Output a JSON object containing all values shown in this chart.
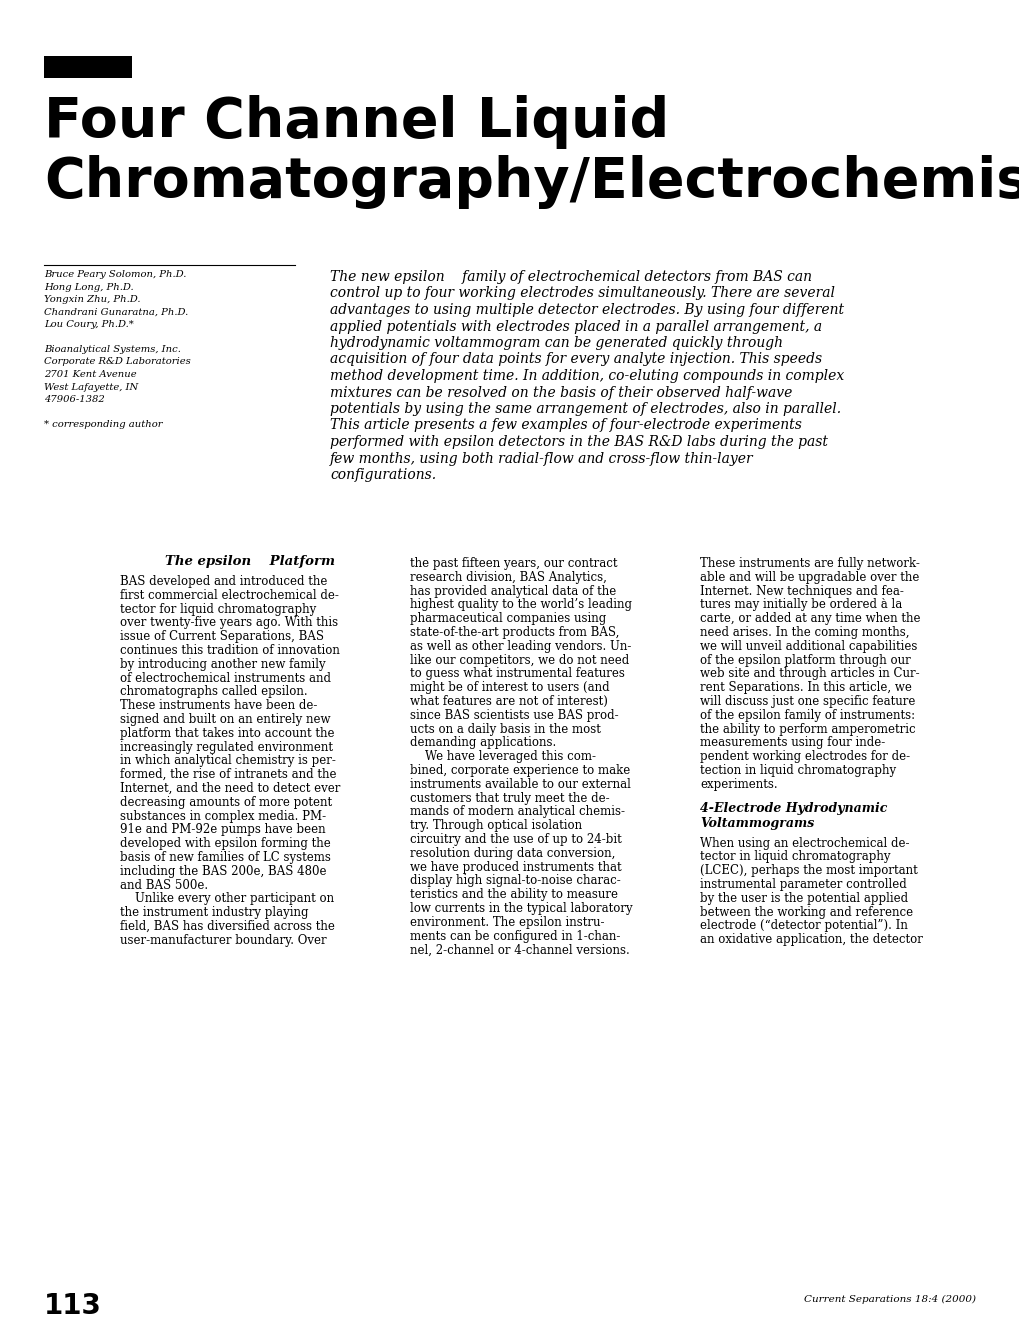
{
  "bg_color": "#ffffff",
  "title_line1": "Four Channel Liquid",
  "title_line2": "Chromatography/Electrochemistry",
  "authors_block": [
    "Bruce Peary Solomon, Ph.D.",
    "Hong Long, Ph.D.",
    "Yongxin Zhu, Ph.D.",
    "Chandrani Gunaratna, Ph.D.",
    "Lou Coury, Ph.D.*",
    "",
    "Bioanalytical Systems, Inc.",
    "Corporate R&D Laboratories",
    "2701 Kent Avenue",
    "West Lafayette, IN",
    "47906-1382",
    "",
    "* corresponding author"
  ],
  "abstract_lines": [
    "The new epsilon    family of electrochemical detectors from BAS can",
    "control up to four working electrodes simultaneously. There are several",
    "advantages to using multiple detector electrodes. By using four different",
    "applied potentials with electrodes placed in a parallel arrangement, a",
    "hydrodynamic voltammogram can be generated quickly through",
    "acquisition of four data points for every analyte injection. This speeds",
    "method development time. In addition, co-eluting compounds in complex",
    "mixtures can be resolved on the basis of their observed half-wave",
    "potentials by using the same arrangement of electrodes, also in parallel.",
    "This article presents a few examples of four-electrode experiments",
    "performed with epsilon detectors in the BAS R&D labs during the past",
    "few months, using both radial-flow and cross-flow thin-layer",
    "configurations."
  ],
  "section_title": "The epsilon    Platform",
  "col1_lines": [
    "BAS developed and introduced the",
    "first commercial electrochemical de-",
    "tector for liquid chromatography",
    "over twenty-five years ago. With this",
    "issue of Current Separations, BAS",
    "continues this tradition of innovation",
    "by introducing another new family",
    "of electrochemical instruments and",
    "chromatographs called epsilon.",
    "These instruments have been de-",
    "signed and built on an entirely new",
    "platform that takes into account the",
    "increasingly regulated environment",
    "in which analytical chemistry is per-",
    "formed, the rise of intranets and the",
    "Internet, and the need to detect ever",
    "decreasing amounts of more potent",
    "substances in complex media. PM-",
    "91e and PM-92e pumps have been",
    "developed with epsilon forming the",
    "basis of new families of LC systems",
    "including the BAS 200e, BAS 480e",
    "and BAS 500e.",
    "    Unlike every other participant on",
    "the instrument industry playing",
    "field, BAS has diversified across the",
    "user-manufacturer boundary. Over"
  ],
  "col2_lines": [
    "the past fifteen years, our contract",
    "research division, BAS Analytics,",
    "has provided analytical data of the",
    "highest quality to the world’s leading",
    "pharmaceutical companies using",
    "state-of-the-art products from BAS,",
    "as well as other leading vendors. Un-",
    "like our competitors, we do not need",
    "to guess what instrumental features",
    "might be of interest to users (and",
    "what features are not of interest)",
    "since BAS scientists use BAS prod-",
    "ucts on a daily basis in the most",
    "demanding applications.",
    "    We have leveraged this com-",
    "bined, corporate experience to make",
    "instruments available to our external",
    "customers that truly meet the de-",
    "mands of modern analytical chemis-",
    "try. Through optical isolation",
    "circuitry and the use of up to 24-bit",
    "resolution during data conversion,",
    "we have produced instruments that",
    "display high signal-to-noise charac-",
    "teristics and the ability to measure",
    "low currents in the typical laboratory",
    "environment. The epsilon instru-",
    "ments can be configured in 1-chan-",
    "nel, 2-channel or 4-channel versions."
  ],
  "col3_lines_p1": [
    "These instruments are fully network-",
    "able and will be upgradable over the",
    "Internet. New techniques and fea-",
    "tures may initially be ordered à la",
    "carte, or added at any time when the",
    "need arises. In the coming months,",
    "we will unveil additional capabilities",
    "of the epsilon platform through our",
    "web site and through articles in Cur-",
    "rent Separations. In this article, we",
    "will discuss just one specific feature",
    "of the epsilon family of instruments:",
    "the ability to perform amperometric",
    "measurements using four inde-",
    "pendent working electrodes for de-",
    "tection in liquid chromatography",
    "experiments."
  ],
  "col3_section_line1": "4-Electrode Hydrodynamic",
  "col3_section_line2": "Voltammograms",
  "col3_lines_p2": [
    "When using an electrochemical de-",
    "tector in liquid chromatography",
    "(LCEC), perhaps the most important",
    "instrumental parameter controlled",
    "by the user is the potential applied",
    "between the working and reference",
    "electrode (“detector potential”). In",
    "an oxidative application, the detector"
  ],
  "page_number": "113",
  "footer_text": "Current Separations 18:4 (2000)"
}
